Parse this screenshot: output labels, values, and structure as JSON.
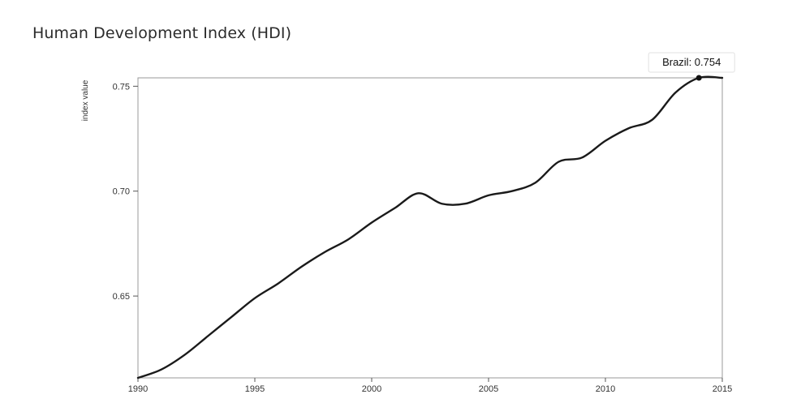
{
  "page": {
    "title": "Human Development Index (HDI)"
  },
  "chart_data": {
    "type": "line",
    "title": "Human Development Index (HDI)",
    "xlabel": "",
    "ylabel": "index value",
    "xlim": [
      1990,
      2015
    ],
    "ylim": [
      0.611,
      0.754
    ],
    "x_ticks": [
      1990,
      1995,
      2000,
      2005,
      2010,
      2015
    ],
    "y_ticks": [
      "0.65",
      "0.70",
      "0.75"
    ],
    "grid": false,
    "series": [
      {
        "name": "Brazil",
        "color": "#1a1a1a",
        "x": [
          1990,
          1991,
          1992,
          1993,
          1994,
          1995,
          1996,
          1997,
          1998,
          1999,
          2000,
          2001,
          2002,
          2003,
          2004,
          2005,
          2006,
          2007,
          2008,
          2009,
          2010,
          2011,
          2012,
          2013,
          2014,
          2015
        ],
        "values": [
          0.611,
          0.615,
          0.622,
          0.631,
          0.64,
          0.649,
          0.656,
          0.664,
          0.671,
          0.677,
          0.685,
          0.692,
          0.699,
          0.694,
          0.694,
          0.698,
          0.7,
          0.704,
          0.714,
          0.716,
          0.724,
          0.73,
          0.734,
          0.747,
          0.754,
          0.754
        ]
      }
    ],
    "tooltip": {
      "label": "Brazil: 0.754",
      "x": 2014,
      "y": 0.754
    }
  }
}
